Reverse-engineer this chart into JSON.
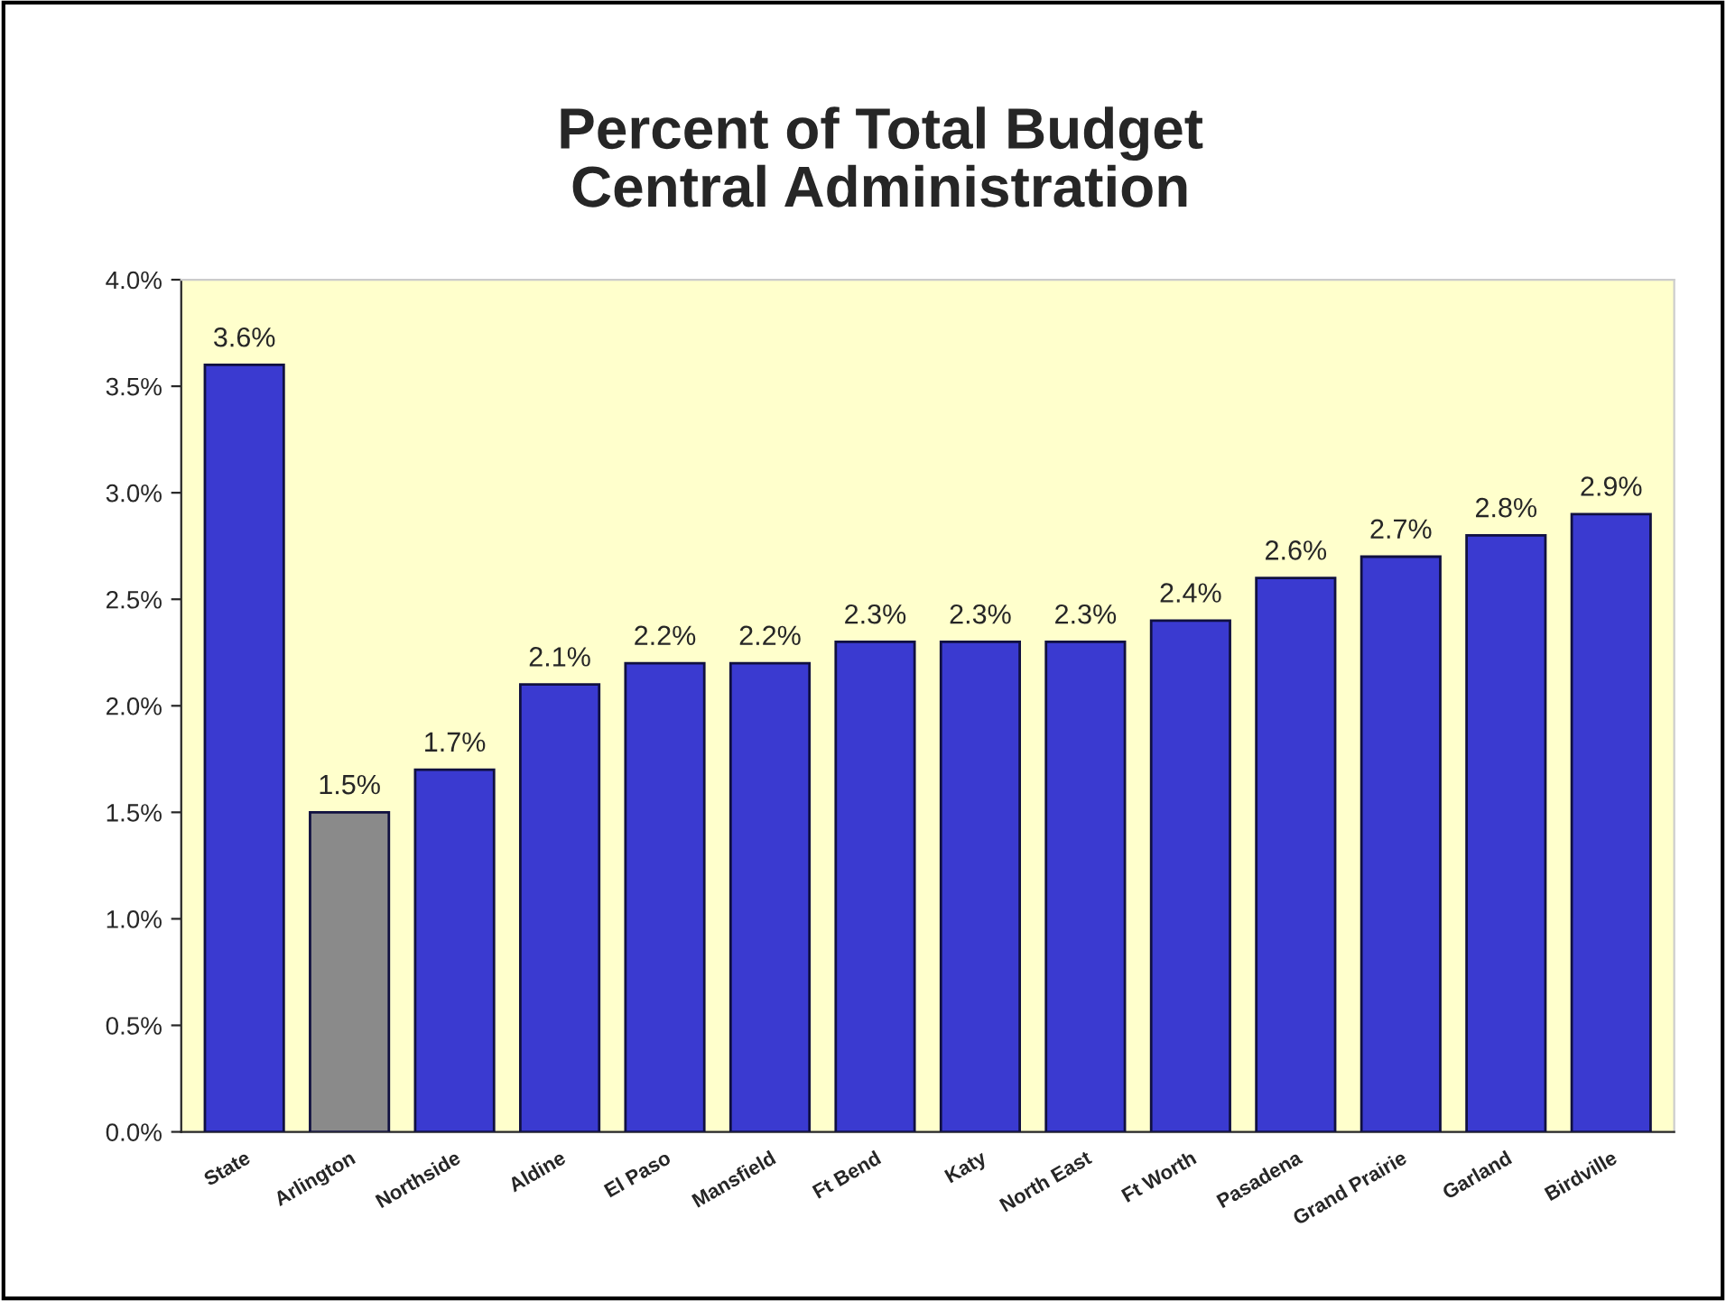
{
  "chart_data": {
    "type": "bar",
    "title": "Percent of Total Budget\nCentral Administration",
    "categories": [
      "State",
      "Arlington",
      "Northside",
      "Aldine",
      "El Paso",
      "Mansfield",
      "Ft Bend",
      "Katy",
      "North East",
      "Ft Worth",
      "Pasadena",
      "Grand Prairie",
      "Garland",
      "Birdville"
    ],
    "values": [
      3.6,
      1.5,
      1.7,
      2.1,
      2.2,
      2.2,
      2.3,
      2.3,
      2.3,
      2.4,
      2.6,
      2.7,
      2.8,
      2.9
    ],
    "value_labels": [
      "3.6%",
      "1.5%",
      "1.7%",
      "2.1%",
      "2.2%",
      "2.2%",
      "2.3%",
      "2.3%",
      "2.3%",
      "2.4%",
      "2.6%",
      "2.7%",
      "2.8%",
      "2.9%"
    ],
    "colors": [
      "#3a3ad0",
      "#8a8a8a",
      "#3a3ad0",
      "#3a3ad0",
      "#3a3ad0",
      "#3a3ad0",
      "#3a3ad0",
      "#3a3ad0",
      "#3a3ad0",
      "#3a3ad0",
      "#3a3ad0",
      "#3a3ad0",
      "#3a3ad0",
      "#3a3ad0"
    ],
    "ylim": [
      0,
      4
    ],
    "yticks": [
      {
        "value": 0,
        "label": "0.0%"
      },
      {
        "value": 0.5,
        "label": "0.5%"
      },
      {
        "value": 1,
        "label": "1.0%"
      },
      {
        "value": 1.5,
        "label": "1.5%"
      },
      {
        "value": 2,
        "label": "2.0%"
      },
      {
        "value": 2.5,
        "label": "2.5%"
      },
      {
        "value": 3,
        "label": "3.0%"
      },
      {
        "value": 3.5,
        "label": "3.5%"
      },
      {
        "value": 4,
        "label": "4.0%"
      }
    ],
    "grid": false,
    "legend": false
  }
}
